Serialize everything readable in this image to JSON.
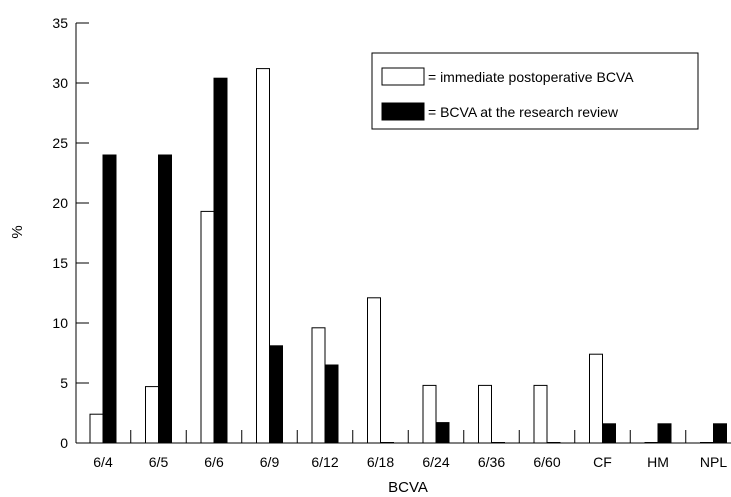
{
  "chart_data": {
    "type": "bar",
    "categories": [
      "6/4",
      "6/5",
      "6/6",
      "6/9",
      "6/12",
      "6/18",
      "6/24",
      "6/36",
      "6/60",
      "CF",
      "HM",
      "NPL"
    ],
    "series": [
      {
        "name": "= immediate postoperative BCVA",
        "color": "#ffffff",
        "values": [
          2.4,
          4.7,
          19.3,
          31.2,
          9.6,
          12.1,
          4.8,
          4.8,
          4.8,
          7.4,
          0,
          0
        ]
      },
      {
        "name": "= BCVA at the research review",
        "color": "#000000",
        "values": [
          24.0,
          24.0,
          30.4,
          8.1,
          6.5,
          0,
          1.7,
          0,
          0,
          1.6,
          1.6,
          1.6
        ]
      }
    ],
    "xlabel": "BCVA",
    "ylabel": "%",
    "ylim": [
      0,
      35
    ],
    "yticks": [
      0,
      5,
      10,
      15,
      20,
      25,
      30,
      35
    ],
    "grid": false,
    "legend_position": "top-right"
  }
}
